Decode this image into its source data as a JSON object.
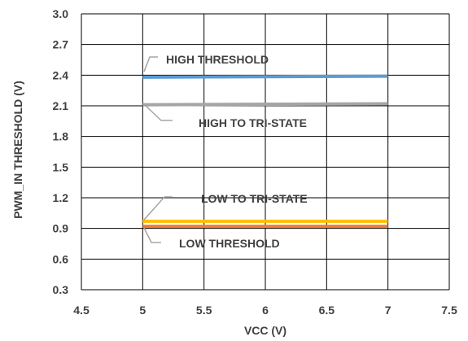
{
  "chart_data": {
    "type": "line",
    "title": "",
    "xlabel": "VCC (V)",
    "ylabel": "PWM_IN  THRESHOLD (V)",
    "xlim": [
      4.5,
      7.5
    ],
    "ylim": [
      0.3,
      3.0
    ],
    "xticks": [
      4.5,
      5,
      5.5,
      6,
      6.5,
      7,
      7.5
    ],
    "yticks": [
      0.3,
      0.6,
      0.9,
      1.2,
      1.5,
      1.8,
      2.1,
      2.4,
      2.7,
      3.0
    ],
    "xtick_labels": [
      "4.5",
      "5",
      "5.5",
      "6",
      "6.5",
      "7",
      "7.5"
    ],
    "ytick_labels": [
      "0.3",
      "0.6",
      "0.9",
      "1.2",
      "1.5",
      "1.8",
      "2.1",
      "2.4",
      "2.7",
      "3.0"
    ],
    "grid": true,
    "legend": "none",
    "series": [
      {
        "name": "HIGH THRESHOLD",
        "x": [
          5,
          7
        ],
        "y": [
          2.38,
          2.39
        ],
        "color": "#5B9BD5"
      },
      {
        "name": "HIGH TO TRI-STATE",
        "x": [
          5,
          7
        ],
        "y": [
          2.11,
          2.12
        ],
        "color": "#A5A5A5"
      },
      {
        "name": "LOW TO TRI-STATE",
        "x": [
          5,
          7
        ],
        "y": [
          0.97,
          0.97
        ],
        "color": "#FFC000"
      },
      {
        "name": "LOW THRESHOLD",
        "x": [
          5,
          7
        ],
        "y": [
          0.92,
          0.92
        ],
        "color": "#ED7D31"
      }
    ]
  }
}
